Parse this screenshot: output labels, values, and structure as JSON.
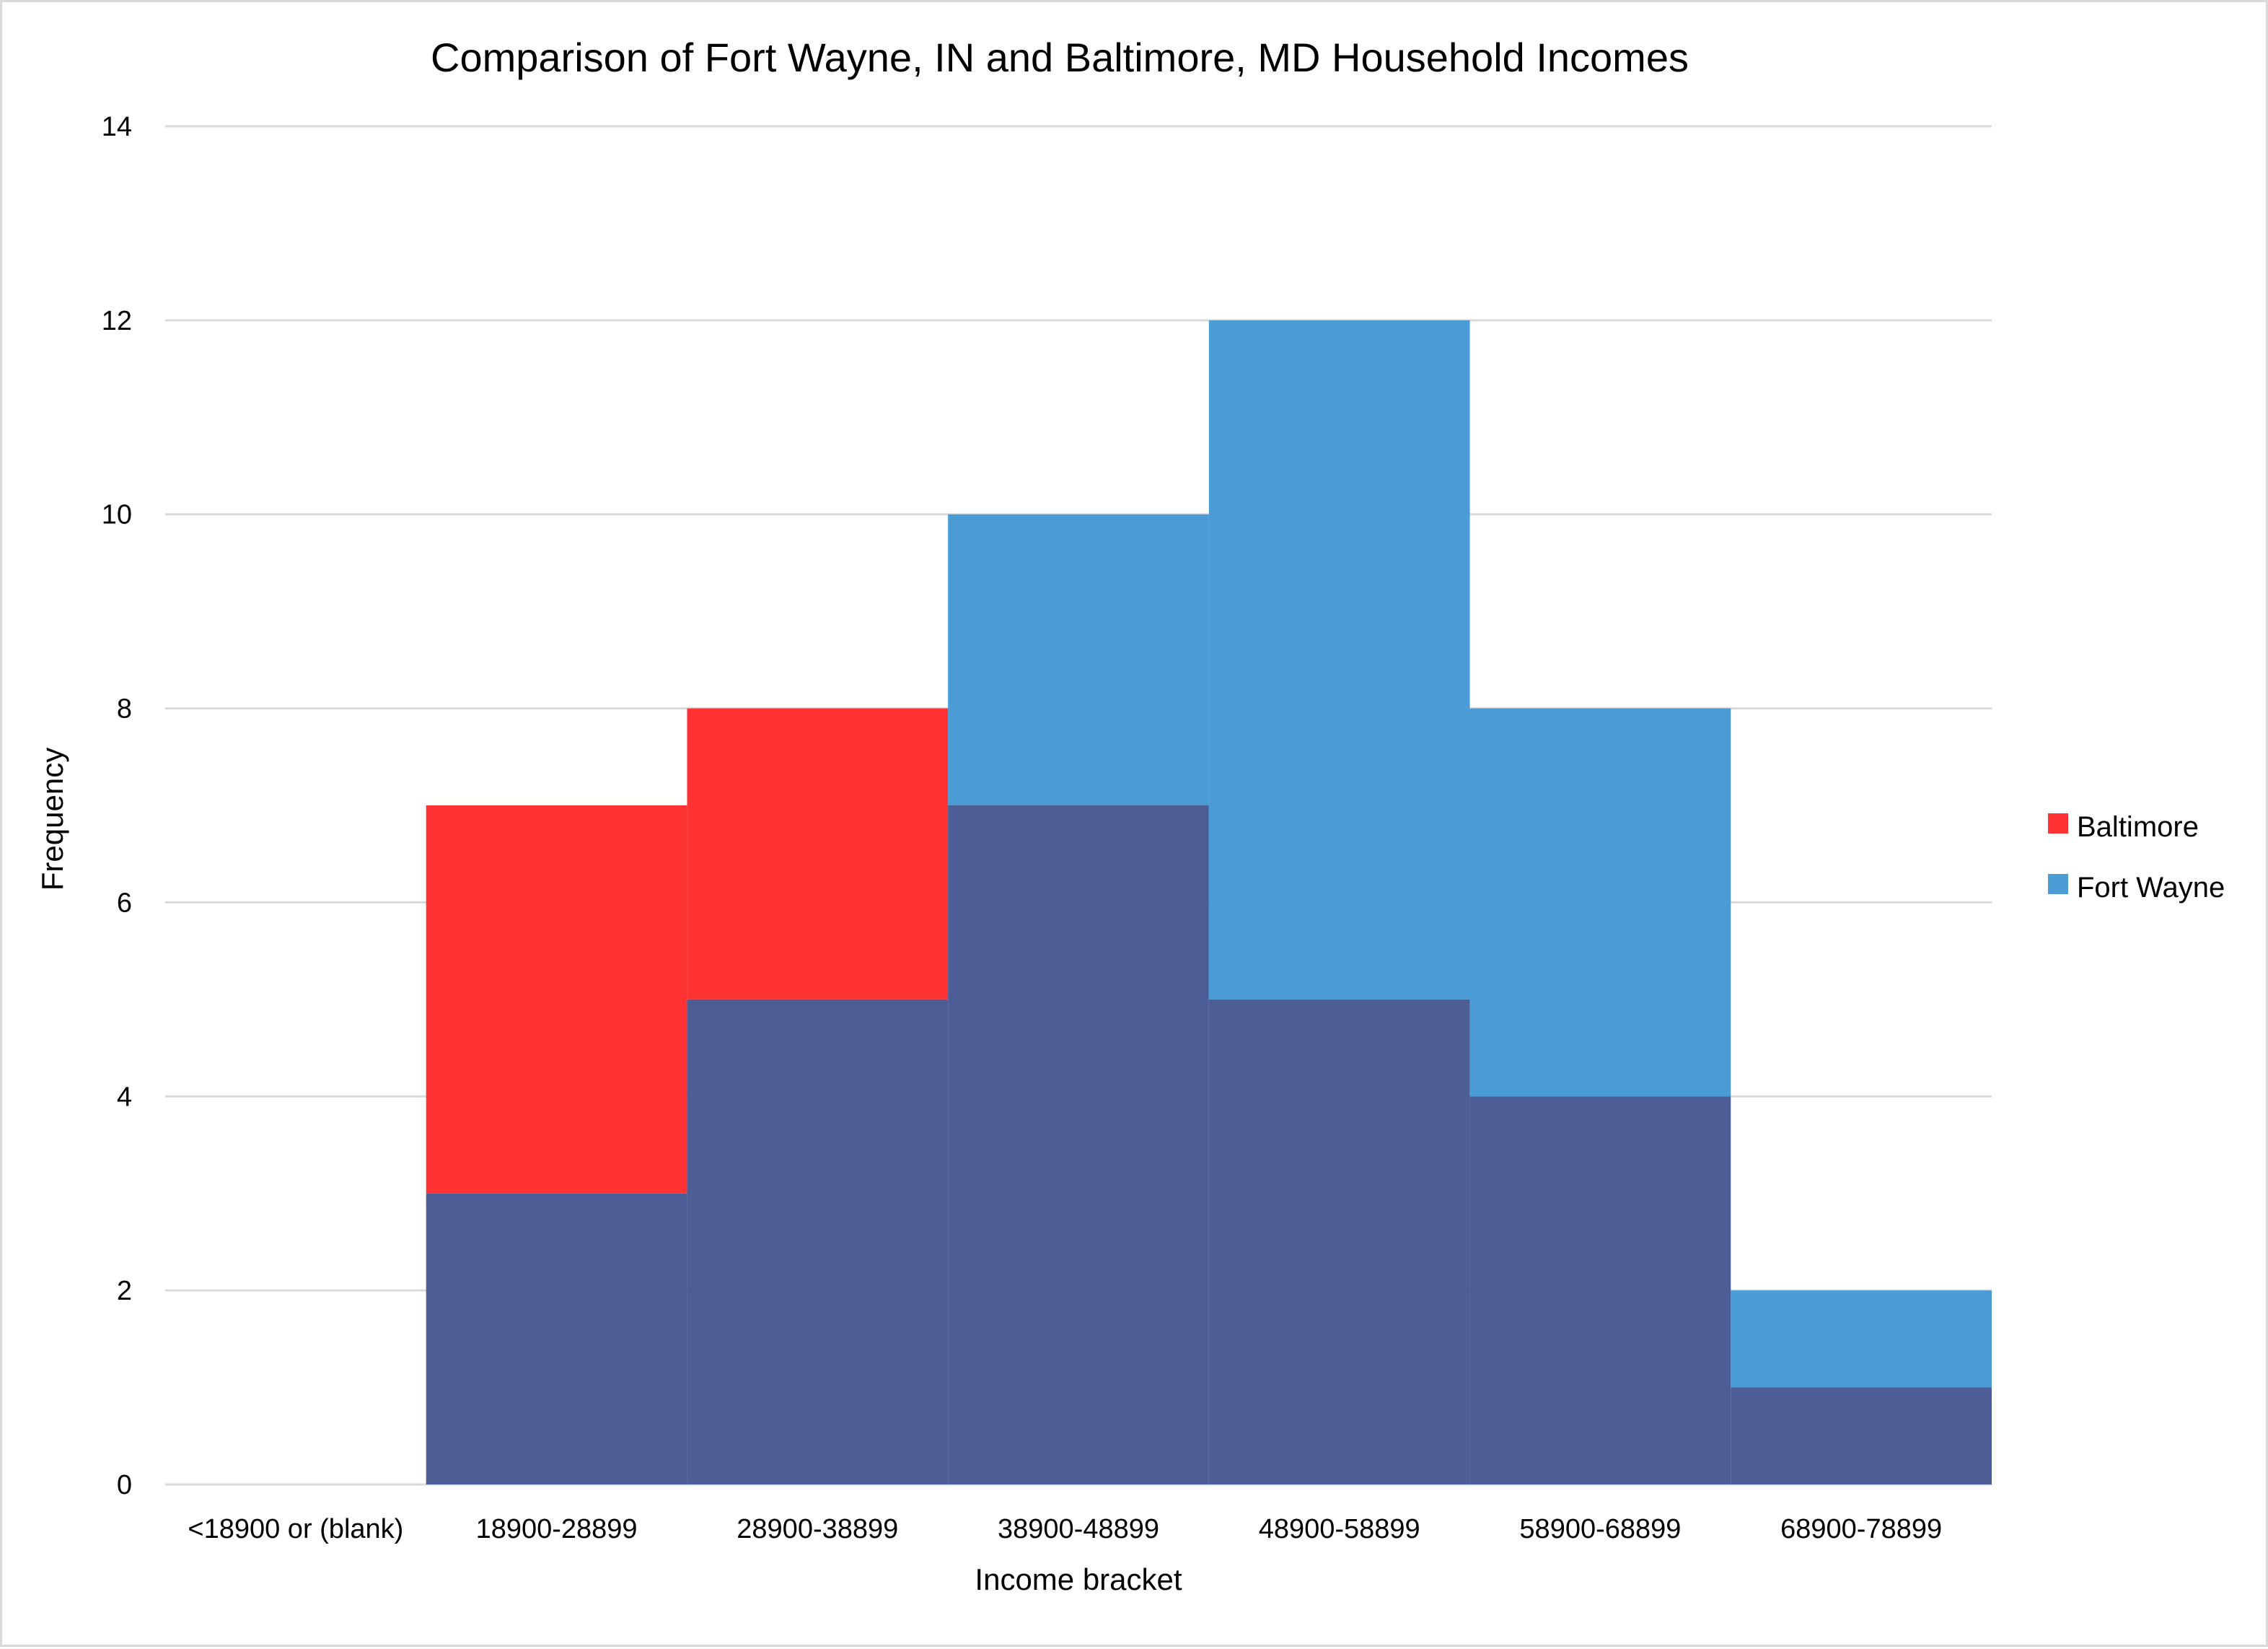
{
  "chart_data": {
    "type": "bar",
    "title": "Comparison of Fort Wayne, IN and Baltimore, MD Household Incomes",
    "xlabel": "Income bracket",
    "ylabel": "Frequency",
    "ylim": [
      0,
      14
    ],
    "yticks": [
      0,
      2,
      4,
      6,
      8,
      10,
      12,
      14
    ],
    "categories": [
      "<18900 or (blank)",
      "18900-28899",
      "28900-38899",
      "38900-48899",
      "48900-58899",
      "58900-68899",
      "68900-78899"
    ],
    "series": [
      {
        "name": "Baltimore",
        "color": "#ff3333",
        "values": [
          0,
          7,
          8,
          7,
          5,
          4,
          1
        ]
      },
      {
        "name": "Fort Wayne",
        "color": "#4b9bd4",
        "values": [
          0,
          3,
          5,
          10,
          12,
          8,
          2
        ]
      }
    ],
    "overlap_color": "#4d5d96",
    "grid": true,
    "legend_position": "right"
  }
}
